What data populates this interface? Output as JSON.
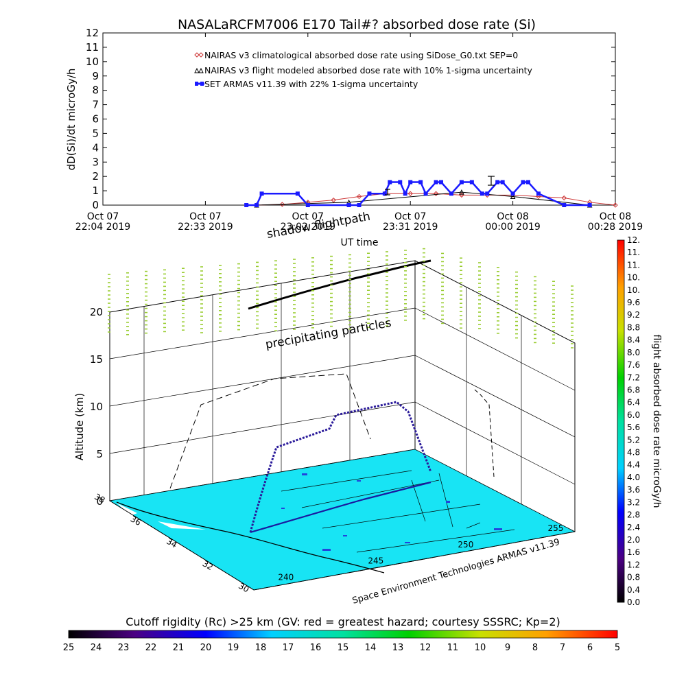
{
  "title": "NASALaRCFM7006  E170 Tail#? absorbed dose rate (Si)",
  "colors": {
    "nairas_clim": "#cc3333",
    "nairas_flight": "#000000",
    "armas": "#1a1aff",
    "surface": "#18e4f4",
    "precip": "#9acd32",
    "flight_track": "#2a1a9a"
  },
  "chart_data": [
    {
      "type": "line",
      "title": "NASALaRCFM7006  E170 Tail#? absorbed dose rate (Si)",
      "xlabel": "UT time",
      "ylabel": "dD(Si)/dt microGy/h",
      "ylim": [
        0,
        12
      ],
      "yticks": [
        "0",
        "1",
        "2",
        "3",
        "4",
        "5",
        "6",
        "7",
        "8",
        "9",
        "10",
        "11",
        "12"
      ],
      "xticks": [
        {
          "l1": "Oct 07",
          "l2": "22:04 2019"
        },
        {
          "l1": "Oct 07",
          "l2": "22:33 2019"
        },
        {
          "l1": "Oct 07",
          "l2": "23:02 2019"
        },
        {
          "l1": "Oct 07",
          "l2": "23:31 2019"
        },
        {
          "l1": "Oct 08",
          "l2": "00:00 2019"
        },
        {
          "l1": "Oct 08",
          "l2": "00:28 2019"
        }
      ],
      "legend_placement": "top-left",
      "series": [
        {
          "name": "NAIRAS v3 climatological absorbed dose rate using SiDose_G0.txt SEP=0",
          "marker": "diamond",
          "x": [
            0.3,
            0.35,
            0.4,
            0.45,
            0.5,
            0.55,
            0.6,
            0.65,
            0.7,
            0.75,
            0.8,
            0.85,
            0.9,
            0.95,
            1.0
          ],
          "y": [
            0.0,
            0.05,
            0.2,
            0.35,
            0.6,
            0.8,
            0.8,
            0.8,
            0.7,
            0.7,
            0.7,
            0.6,
            0.5,
            0.2,
            0.0
          ]
        },
        {
          "name": "NAIRAS v3 flight modeled absorbed dose rate with 10% 1-sigma uncertainty",
          "marker": "triangle",
          "x": [
            0.3,
            0.48,
            0.7,
            0.8,
            0.95
          ],
          "y": [
            0.0,
            0.2,
            0.9,
            0.6,
            0.0
          ]
        },
        {
          "name": "SET ARMAS v11.39 with 22% 1-sigma uncertainty",
          "marker": "square",
          "x": [
            0.28,
            0.3,
            0.31,
            0.38,
            0.4,
            0.48,
            0.5,
            0.52,
            0.55,
            0.56,
            0.58,
            0.59,
            0.6,
            0.62,
            0.63,
            0.65,
            0.66,
            0.68,
            0.7,
            0.72,
            0.74,
            0.75,
            0.77,
            0.78,
            0.8,
            0.82,
            0.83,
            0.85,
            0.9,
            0.95
          ],
          "y": [
            0,
            0,
            0.8,
            0.8,
            0,
            0,
            0,
            0.8,
            0.8,
            1.6,
            1.6,
            0.8,
            1.6,
            1.6,
            0.8,
            1.6,
            1.6,
            0.8,
            1.6,
            1.6,
            0.8,
            0.8,
            1.6,
            1.6,
            0.8,
            1.6,
            1.6,
            0.8,
            0,
            0
          ]
        }
      ]
    },
    {
      "type": "scatter",
      "title": "",
      "ylabel": "Altitude (km)",
      "zticks": [
        "0",
        "5",
        "10",
        "15",
        "20"
      ],
      "lat_ticks": [
        "30",
        "32",
        "34",
        "36",
        "38"
      ],
      "lon_ticks": [
        "240",
        "245",
        "250",
        "255"
      ],
      "annotations": [
        "shadow flightpath",
        "precipitating particles"
      ],
      "caption": "Space Environment Technologies ARMAS v11.39"
    }
  ],
  "right_colorbar": {
    "label": "flight absorbed dose rate microGy/h",
    "ticks": [
      "0.0",
      "0.4",
      "0.8",
      "1.2",
      "1.6",
      "2.0",
      "2.4",
      "2.8",
      "3.2",
      "3.6",
      "4.0",
      "4.4",
      "4.8",
      "5.2",
      "5.6",
      "6.0",
      "6.4",
      "6.8",
      "7.2",
      "7.6",
      "8.0",
      "8.4",
      "8.8",
      "9.2",
      "9.6",
      "10.",
      "10.",
      "11.",
      "11.",
      "12."
    ]
  },
  "bottom_colorbar": {
    "label": "Cutoff rigidity (Rc) >25 km (GV: red = greatest hazard; courtesy SSSRC; Kp=2)",
    "ticks": [
      "25",
      "24",
      "23",
      "22",
      "21",
      "20",
      "19",
      "18",
      "17",
      "16",
      "15",
      "14",
      "13",
      "12",
      "11",
      "10",
      "9",
      "8",
      "7",
      "6",
      "5"
    ]
  }
}
